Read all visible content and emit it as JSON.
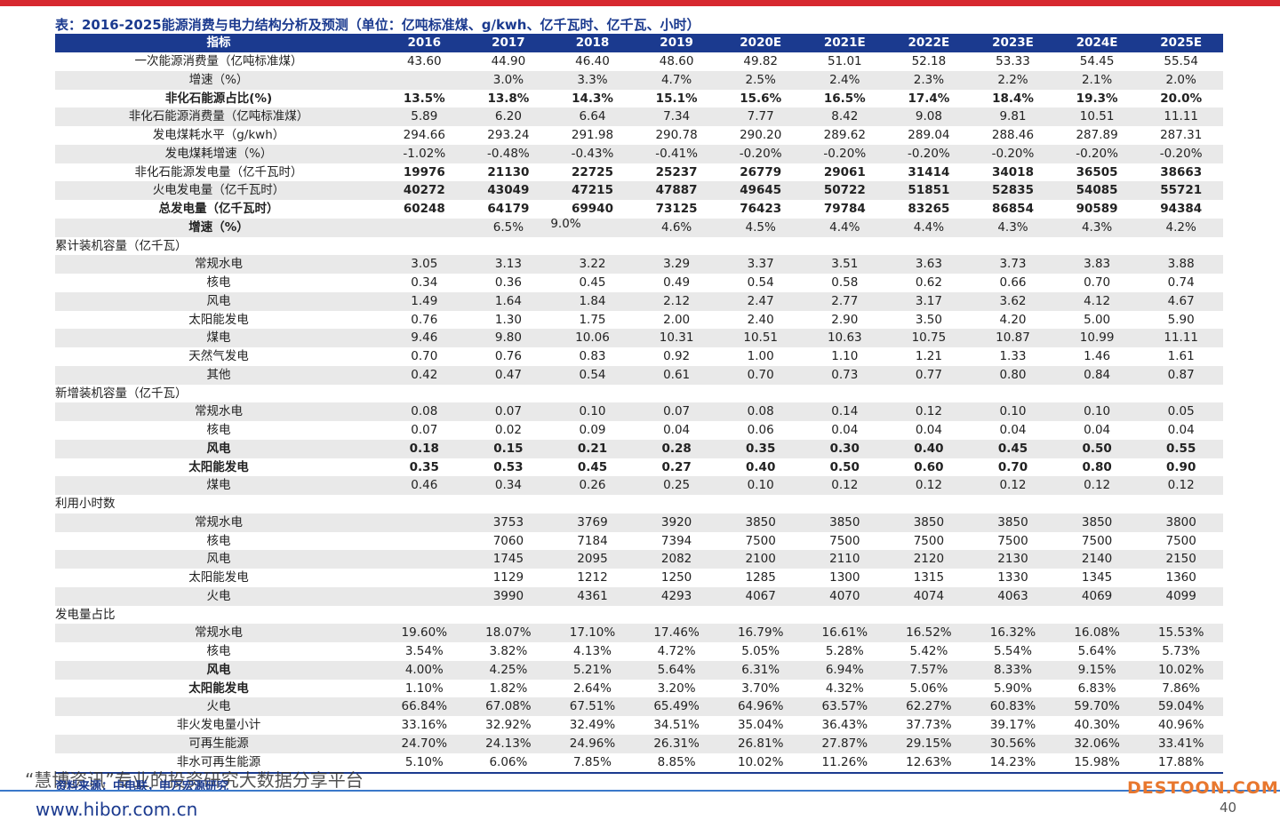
{
  "title": "表：2016-2025能源消费与电力结构分析及预测（单位：亿吨标准煤、g/kwh、亿千瓦时、亿千瓦、小时）",
  "table": {
    "header": [
      "指标",
      "2016",
      "2017",
      "2018",
      "2019",
      "2020E",
      "2021E",
      "2022E",
      "2023E",
      "2024E",
      "2025E"
    ],
    "rows": [
      {
        "label": "一次能源消费量（亿吨标准煤）",
        "values": [
          "43.60",
          "44.90",
          "46.40",
          "48.60",
          "49.82",
          "51.01",
          "52.18",
          "53.33",
          "54.45",
          "55.54"
        ]
      },
      {
        "label": "增速（%）",
        "values": [
          null,
          "3.0%",
          "3.3%",
          "4.7%",
          "2.5%",
          "2.4%",
          "2.3%",
          "2.2%",
          "2.1%",
          "2.0%"
        ]
      },
      {
        "label": "非化石能源占比(%)",
        "values": [
          "13.5%",
          "13.8%",
          "14.3%",
          "15.1%",
          "15.6%",
          "16.5%",
          "17.4%",
          "18.4%",
          "19.3%",
          "20.0%"
        ]
      },
      {
        "label": "非化石能源消费量（亿吨标准煤）",
        "values": [
          "5.89",
          "6.20",
          "6.64",
          "7.34",
          "7.77",
          "8.42",
          "9.08",
          "9.81",
          "10.51",
          "11.11"
        ]
      },
      {
        "label": "发电煤耗水平（g/kwh）",
        "values": [
          "294.66",
          "293.24",
          "291.98",
          "290.78",
          "290.20",
          "289.62",
          "289.04",
          "288.46",
          "287.89",
          "287.31"
        ]
      },
      {
        "label": "发电煤耗增速（%）",
        "values": [
          "-1.02%",
          "-0.48%",
          "-0.43%",
          "-0.41%",
          "-0.20%",
          "-0.20%",
          "-0.20%",
          "-0.20%",
          "-0.20%",
          "-0.20%"
        ]
      },
      {
        "label": "非化石能源发电量（亿千瓦时）",
        "values": [
          "19976",
          "21130",
          "22725",
          "25237",
          "26779",
          "29061",
          "31414",
          "34018",
          "36505",
          "38663"
        ]
      },
      {
        "label": "火电发电量（亿千瓦时）",
        "values": [
          "40272",
          "43049",
          "47215",
          "47887",
          "49645",
          "50722",
          "51851",
          "52835",
          "54085",
          "55721"
        ]
      },
      {
        "label": "总发电量（亿千瓦时）",
        "values": [
          "60248",
          "64179",
          "69940",
          "73125",
          "76423",
          "79784",
          "83265",
          "86854",
          "90589",
          "94384"
        ]
      },
      {
        "label": "增速（%）",
        "values": [
          null,
          "6.5%",
          "9.0%",
          "4.6%",
          "4.5%",
          "4.4%",
          "4.4%",
          "4.3%",
          "4.3%",
          "4.2%"
        ]
      },
      {
        "label": "累计装机容量（亿千瓦）"
      },
      {
        "label": "常规水电",
        "values": [
          "3.05",
          "3.13",
          "3.22",
          "3.29",
          "3.37",
          "3.51",
          "3.63",
          "3.73",
          "3.83",
          "3.88"
        ]
      },
      {
        "label": "核电",
        "values": [
          "0.34",
          "0.36",
          "0.45",
          "0.49",
          "0.54",
          "0.58",
          "0.62",
          "0.66",
          "0.70",
          "0.74"
        ]
      },
      {
        "label": "风电",
        "values": [
          "1.49",
          "1.64",
          "1.84",
          "2.12",
          "2.47",
          "2.77",
          "3.17",
          "3.62",
          "4.12",
          "4.67"
        ]
      },
      {
        "label": "太阳能发电",
        "values": [
          "0.76",
          "1.30",
          "1.75",
          "2.00",
          "2.40",
          "2.90",
          "3.50",
          "4.20",
          "5.00",
          "5.90"
        ]
      },
      {
        "label": "煤电",
        "values": [
          "9.46",
          "9.80",
          "10.06",
          "10.31",
          "10.51",
          "10.63",
          "10.75",
          "10.87",
          "10.99",
          "11.11"
        ]
      },
      {
        "label": "天然气发电",
        "values": [
          "0.70",
          "0.76",
          "0.83",
          "0.92",
          "1.00",
          "1.10",
          "1.21",
          "1.33",
          "1.46",
          "1.61"
        ]
      },
      {
        "label": "其他",
        "values": [
          "0.42",
          "0.47",
          "0.54",
          "0.61",
          "0.70",
          "0.73",
          "0.77",
          "0.80",
          "0.84",
          "0.87"
        ]
      },
      {
        "label": "新增装机容量（亿千瓦）"
      },
      {
        "label": "常规水电",
        "values": [
          "0.08",
          "0.07",
          "0.10",
          "0.07",
          "0.08",
          "0.14",
          "0.12",
          "0.10",
          "0.10",
          "0.05"
        ]
      },
      {
        "label": "核电",
        "values": [
          "0.07",
          "0.02",
          "0.09",
          "0.04",
          "0.06",
          "0.04",
          "0.04",
          "0.04",
          "0.04",
          "0.04"
        ]
      },
      {
        "label": "风电",
        "values": [
          "0.18",
          "0.15",
          "0.21",
          "0.28",
          "0.35",
          "0.30",
          "0.40",
          "0.45",
          "0.50",
          "0.55"
        ]
      },
      {
        "label": "太阳能发电",
        "values": [
          "0.35",
          "0.53",
          "0.45",
          "0.27",
          "0.40",
          "0.50",
          "0.60",
          "0.70",
          "0.80",
          "0.90"
        ]
      },
      {
        "label": "煤电",
        "values": [
          "0.46",
          "0.34",
          "0.26",
          "0.25",
          "0.10",
          "0.12",
          "0.12",
          "0.12",
          "0.12",
          "0.12"
        ]
      },
      {
        "label": "利用小时数"
      },
      {
        "label": "常规水电",
        "values": [
          null,
          "3753",
          "3769",
          "3920",
          "3850",
          "3850",
          "3850",
          "3850",
          "3850",
          "3800"
        ]
      },
      {
        "label": "核电",
        "values": [
          null,
          "7060",
          "7184",
          "7394",
          "7500",
          "7500",
          "7500",
          "7500",
          "7500",
          "7500"
        ]
      },
      {
        "label": "风电",
        "values": [
          null,
          "1745",
          "2095",
          "2082",
          "2100",
          "2110",
          "2120",
          "2130",
          "2140",
          "2150"
        ]
      },
      {
        "label": "太阳能发电",
        "values": [
          null,
          "1129",
          "1212",
          "1250",
          "1285",
          "1300",
          "1315",
          "1330",
          "1345",
          "1360"
        ]
      },
      {
        "label": "火电",
        "values": [
          null,
          "3990",
          "4361",
          "4293",
          "4067",
          "4070",
          "4074",
          "4063",
          "4069",
          "4099"
        ]
      },
      {
        "label": "发电量占比"
      },
      {
        "label": "常规水电",
        "values": [
          "19.60%",
          "18.07%",
          "17.10%",
          "17.46%",
          "16.79%",
          "16.61%",
          "16.52%",
          "16.32%",
          "16.08%",
          "15.53%"
        ]
      },
      {
        "label": "核电",
        "values": [
          "3.54%",
          "3.82%",
          "4.13%",
          "4.72%",
          "5.05%",
          "5.28%",
          "5.42%",
          "5.54%",
          "5.64%",
          "5.73%"
        ]
      },
      {
        "label": "风电",
        "values": [
          "4.00%",
          "4.25%",
          "5.21%",
          "5.64%",
          "6.31%",
          "6.94%",
          "7.57%",
          "8.33%",
          "9.15%",
          "10.02%"
        ]
      },
      {
        "label": "太阳能发电",
        "values": [
          "1.10%",
          "1.82%",
          "2.64%",
          "3.20%",
          "3.70%",
          "4.32%",
          "5.06%",
          "5.90%",
          "6.83%",
          "7.86%"
        ]
      },
      {
        "label": "火电",
        "values": [
          "66.84%",
          "67.08%",
          "67.51%",
          "65.49%",
          "64.96%",
          "63.57%",
          "62.27%",
          "60.83%",
          "59.70%",
          "59.04%"
        ]
      },
      {
        "label": "非火发电量小计",
        "values": [
          "33.16%",
          "32.92%",
          "32.49%",
          "34.51%",
          "35.04%",
          "36.43%",
          "37.73%",
          "39.17%",
          "40.30%",
          "40.96%"
        ]
      },
      {
        "label": "可再生能源",
        "values": [
          "24.70%",
          "24.13%",
          "24.96%",
          "26.31%",
          "26.81%",
          "27.87%",
          "29.15%",
          "30.56%",
          "32.06%",
          "33.41%"
        ]
      },
      {
        "label": "非水可再生能源",
        "values": [
          "5.10%",
          "6.06%",
          "7.85%",
          "8.85%",
          "10.02%",
          "11.26%",
          "12.63%",
          "14.23%",
          "15.98%",
          "17.88%"
        ]
      }
    ]
  },
  "source": "资料来源：中电联，申万宏源研究",
  "watermark": "“慧博资讯”专业的投资研究大数据分享平台",
  "url": "www.hibor.com.cn",
  "brand": "DESTOON.COM",
  "page_number": "40"
}
